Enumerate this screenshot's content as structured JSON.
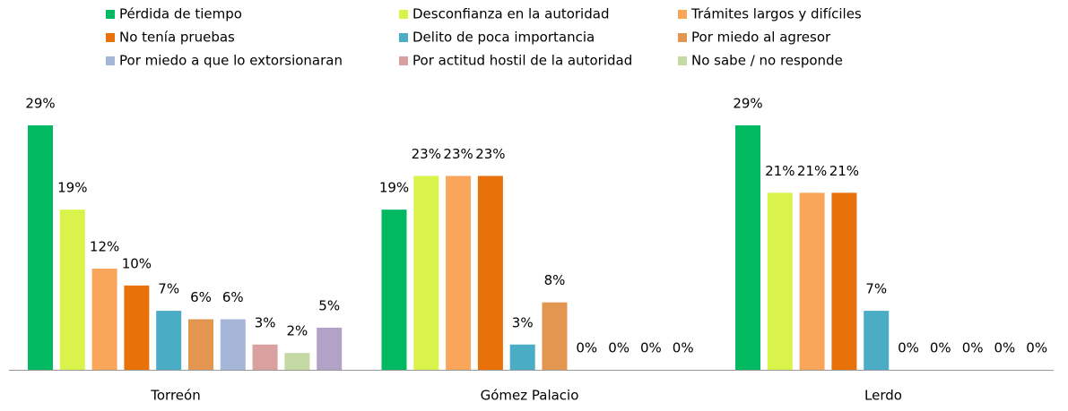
{
  "chart_data": {
    "type": "bar",
    "categories": [
      "Torreón",
      "Gómez Palacio",
      "Lerdo"
    ],
    "ylim": [
      0,
      29
    ],
    "series": [
      {
        "name": "Pérdida de tiempo",
        "color": "#00b960",
        "values": [
          29,
          19,
          29
        ]
      },
      {
        "name": "Desconfianza en la autoridad",
        "color": "#d9f34a",
        "values": [
          19,
          23,
          21
        ]
      },
      {
        "name": "Trámites largos y difíciles",
        "color": "#f9a65a",
        "values": [
          12,
          23,
          21
        ]
      },
      {
        "name": "No tenía pruebas",
        "color": "#e8710a",
        "values": [
          10,
          23,
          21
        ]
      },
      {
        "name": "Delito de poca importancia",
        "color": "#4bacc6",
        "values": [
          7,
          3,
          7
        ]
      },
      {
        "name": "Por miedo al agresor",
        "color": "#e39650",
        "values": [
          6,
          8,
          0
        ]
      },
      {
        "name": "Por miedo a que lo extorsionaran",
        "color": "#a5b6d9",
        "values": [
          6,
          0,
          0
        ]
      },
      {
        "name": "Por actitud hostil de la autoridad",
        "color": "#d9a0a0",
        "values": [
          3,
          0,
          0
        ]
      },
      {
        "name": "No sabe / no responde",
        "color": "#c5d9a5",
        "values": [
          2,
          0,
          0
        ]
      },
      {
        "color": "#b3a2c7",
        "values": [
          5,
          0,
          0
        ]
      }
    ],
    "value_labels": [
      [
        "29%",
        "19%",
        "29%"
      ],
      [
        "19%",
        "23%",
        "21%"
      ],
      [
        "12%",
        "23%",
        "21%"
      ],
      [
        "10%",
        "23%",
        "21%"
      ],
      [
        "7%",
        "3%",
        "7%"
      ],
      [
        "6%",
        "8%",
        "0%"
      ],
      [
        "6%",
        "0%",
        "0%"
      ],
      [
        "3%",
        "0%",
        "0%"
      ],
      [
        "2%",
        "0%",
        "0%"
      ],
      [
        "5%",
        "0%",
        "0%"
      ]
    ]
  }
}
